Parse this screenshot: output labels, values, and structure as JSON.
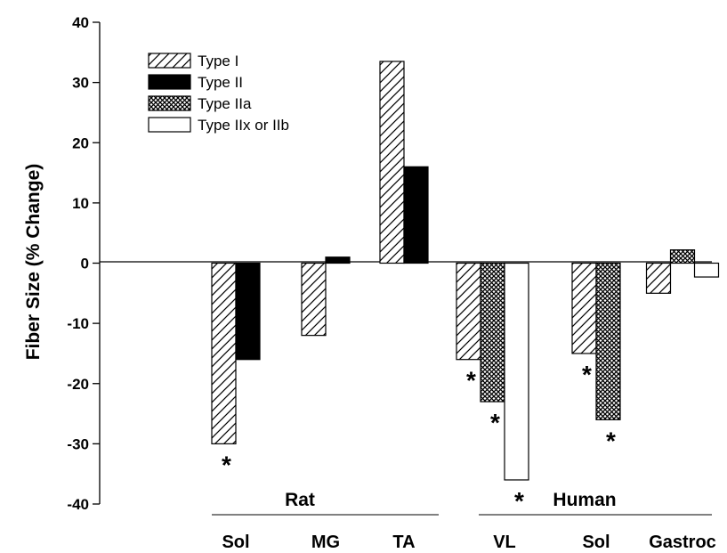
{
  "chart_data": {
    "type": "bar",
    "title": "",
    "ylabel": "Fiber Size (% Change)",
    "xlabel": "",
    "ylim": [
      -40,
      40
    ],
    "yticks": [
      40,
      30,
      20,
      10,
      0,
      -10,
      -20,
      -30,
      -40
    ],
    "grid": false,
    "legend_position": "top-left",
    "groups": [
      {
        "name": "Rat",
        "categories": [
          "Sol",
          "MG",
          "TA"
        ]
      },
      {
        "name": "Human",
        "categories": [
          "VL",
          "Sol",
          "Gastroc"
        ]
      }
    ],
    "categories": [
      {
        "label": "Sol",
        "group": "Rat"
      },
      {
        "label": "MG",
        "group": "Rat"
      },
      {
        "label": "TA",
        "group": "Rat"
      },
      {
        "label": "VL",
        "group": "Human"
      },
      {
        "label": "Sol",
        "group": "Human"
      },
      {
        "label": "Gastroc",
        "group": "Human"
      }
    ],
    "series": [
      {
        "name": "Type I",
        "pattern": "hatch",
        "color": "#000000",
        "values": [
          -30,
          -12,
          33.5,
          -16,
          -15,
          -5
        ],
        "significant": [
          true,
          false,
          false,
          true,
          true,
          false
        ]
      },
      {
        "name": "Type II",
        "pattern": "solid",
        "color": "#000000",
        "values": [
          -16,
          1,
          16,
          null,
          null,
          null
        ],
        "significant": [
          false,
          false,
          false,
          false,
          false,
          false
        ]
      },
      {
        "name": "Type IIa",
        "pattern": "crosshatch",
        "color": "#000000",
        "values": [
          null,
          null,
          null,
          -23,
          -26,
          2.2
        ],
        "significant": [
          false,
          false,
          false,
          true,
          true,
          false
        ]
      },
      {
        "name": "Type IIx or IIb",
        "pattern": "open",
        "color": "#000000",
        "values": [
          null,
          null,
          null,
          -36,
          null,
          -2.3
        ],
        "significant": [
          false,
          false,
          false,
          true,
          false,
          false
        ]
      }
    ],
    "significance_marker": "*"
  }
}
